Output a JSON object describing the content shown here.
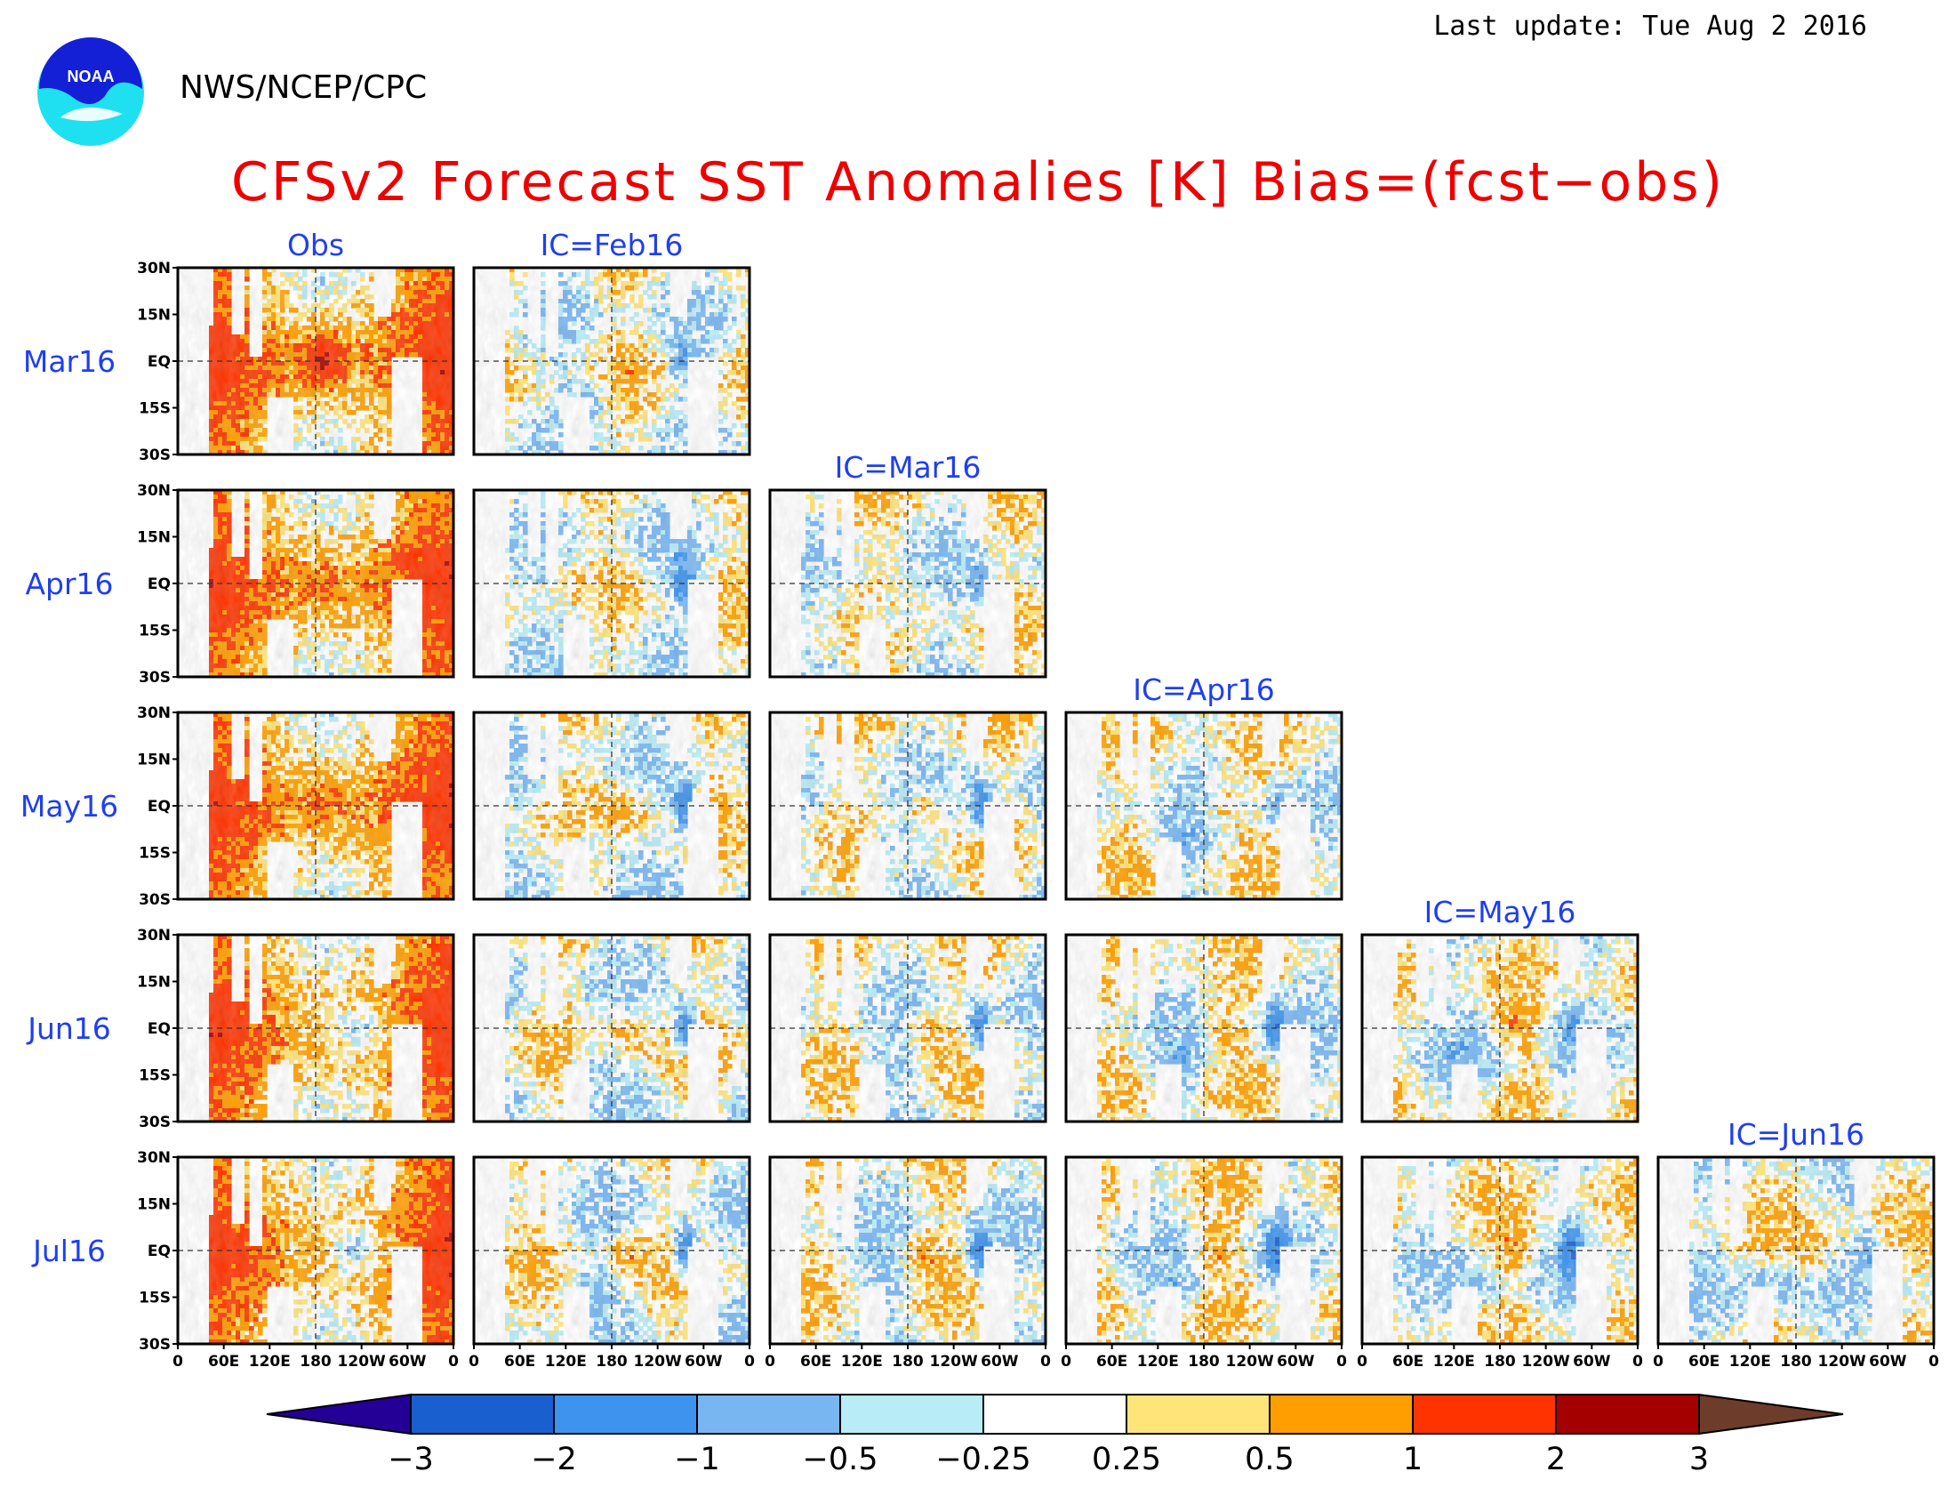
{
  "header": {
    "last_update": "Last update: Tue Aug 2 2016",
    "agency": "NWS/NCEP/CPC",
    "logo_text": "NOAA",
    "title": "CFSv2 Forecast SST Anomalies [K] Bias=(fcst−obs)"
  },
  "chart_data": {
    "type": "heatmap",
    "layout": "triangular panel matrix (rows = target month, columns = observations then forecast initial conditions)",
    "rows": [
      "Mar16",
      "Apr16",
      "May16",
      "Jun16",
      "Jul16"
    ],
    "columns": [
      "Obs",
      "IC=Feb16",
      "IC=Mar16",
      "IC=Apr16",
      "IC=May16",
      "IC=Jun16"
    ],
    "panels_present": [
      [
        0,
        0
      ],
      [
        0,
        1
      ],
      [
        1,
        0
      ],
      [
        1,
        1
      ],
      [
        1,
        2
      ],
      [
        2,
        0
      ],
      [
        2,
        1
      ],
      [
        2,
        2
      ],
      [
        2,
        3
      ],
      [
        3,
        0
      ],
      [
        3,
        1
      ],
      [
        3,
        2
      ],
      [
        3,
        3
      ],
      [
        3,
        4
      ],
      [
        4,
        0
      ],
      [
        4,
        1
      ],
      [
        4,
        2
      ],
      [
        4,
        3
      ],
      [
        4,
        4
      ],
      [
        4,
        5
      ]
    ],
    "lat_ticks": [
      "30N",
      "15N",
      "EQ",
      "15S",
      "30S"
    ],
    "lat_range": [
      -30,
      30
    ],
    "lon_ticks": [
      "0",
      "60E",
      "120E",
      "180",
      "120W",
      "60W",
      "0"
    ],
    "lon_range": [
      0,
      360
    ],
    "colorbar": {
      "tick_labels": [
        "−3",
        "−2",
        "−1",
        "−0.5",
        "−0.25",
        "0.25",
        "0.5",
        "1",
        "2",
        "3"
      ],
      "colors": [
        "#250096",
        "#1a5fd0",
        "#3d93ee",
        "#78b6f2",
        "#b8ecf6",
        "#ffffff",
        "#ffe47a",
        "#ff9e00",
        "#ff3300",
        "#a50000",
        "#6e3c2a"
      ],
      "extend": "both"
    },
    "grid": "dashed lines at equator and 180"
  },
  "colors": {
    "title": "#ee0000",
    "panel_labels": "#1f3ff0",
    "land": "#ffffff"
  }
}
